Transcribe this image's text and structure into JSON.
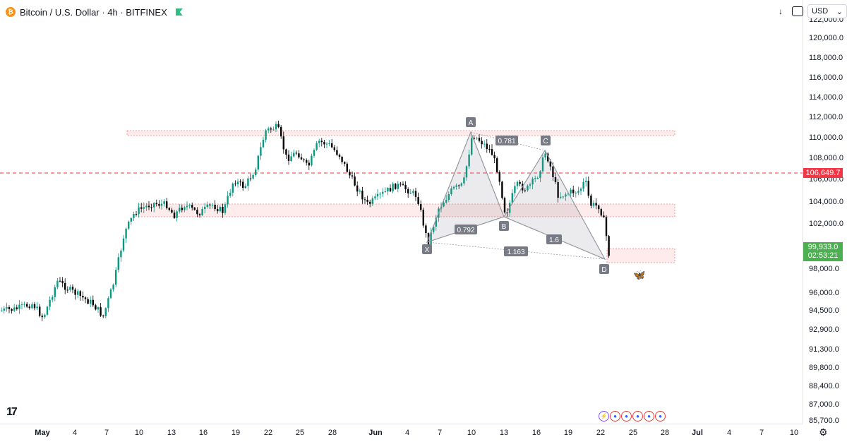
{
  "header": {
    "coin_symbol": "₿",
    "title": "Bitcoin / U.S. Dollar · 4h · BITFINEX"
  },
  "toolbar": {
    "download_icon": "↓",
    "currency": "USD",
    "currency_chevron": "⌄"
  },
  "logo_text": "17",
  "price_axis": {
    "ticks": [
      "122,000.0",
      "120,000.0",
      "118,000.0",
      "116,000.0",
      "114,000.0",
      "112,000.0",
      "110,000.0",
      "108,000.0",
      "106,000.0",
      "104,000.0",
      "102,000.0",
      "98,000.0",
      "96,000.0",
      "94,500.0",
      "92,900.0",
      "91,300.0",
      "89,800.0",
      "88,400.0",
      "87,000.0",
      "85,700.0"
    ],
    "alert_label": "106,649.7",
    "last_price_label": "99,933.0",
    "countdown_label": "02:53:21"
  },
  "time_axis": {
    "ticks": [
      "May",
      "4",
      "7",
      "10",
      "13",
      "16",
      "19",
      "22",
      "25",
      "28",
      "Jun",
      "4",
      "7",
      "10",
      "13",
      "16",
      "19",
      "22",
      "25",
      "28",
      "Jul",
      "4",
      "7",
      "10"
    ]
  },
  "pattern": {
    "points": [
      "X",
      "A",
      "B",
      "C",
      "D"
    ],
    "ratios": [
      "0.792",
      "0.781",
      "1.6",
      "1.163"
    ]
  },
  "colors": {
    "up": "#089981",
    "down": "#000000",
    "zone": "#f23645",
    "alert_line": "#f23645",
    "last_price": "#4caf50",
    "pattern_fill": "#787b86"
  },
  "icons": {
    "gear": "gear-icon",
    "butterfly": "butterfly-icon",
    "logo": "tradingview-logo"
  }
}
